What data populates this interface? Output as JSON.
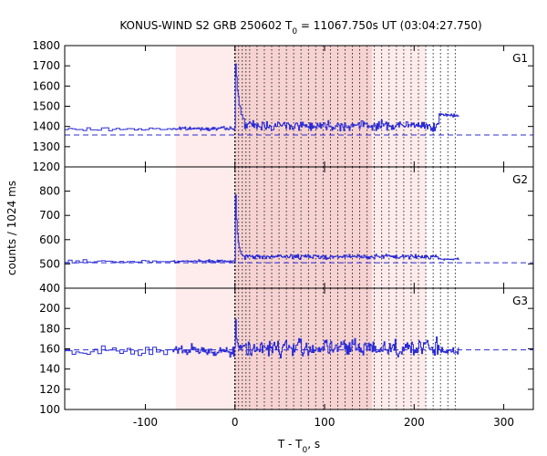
{
  "title": {
    "main": "KONUS-WIND S2 GRB 250602 T",
    "sub": "0",
    "rest": " = 11067.750s UT (03:04:27.750)"
  },
  "colors": {
    "series": "#2b2bd6",
    "shade_light": "#fdeceb",
    "shade_dark": "#f6d2d2",
    "baseline": "#2b2bd6",
    "axis": "#000000",
    "trigger_line": "#000000"
  },
  "chart_data": {
    "type": "line",
    "title": "KONUS-WIND S2 GRB 250602 T0 = 11067.750s UT (03:04:27.750)",
    "xlabel": "T - T0, s",
    "ylabel": "counts / 1024 ms",
    "xlim": [
      -190,
      333
    ],
    "xticks": [
      -100,
      0,
      100,
      200,
      300
    ],
    "xtick_labels": [
      "-100",
      "0",
      "100",
      "200",
      "300"
    ],
    "shaded_background_interval": [
      -66,
      0
    ],
    "shaded_burst_interval": [
      0,
      153
    ],
    "trigger_time": 0,
    "spectrum_interval_boundaries": [
      0,
      4.1,
      8.2,
      12.3,
      16.4,
      24.6,
      32.8,
      41.0,
      49.2,
      57.4,
      65.5,
      73.7,
      82.0,
      90.1,
      98.3,
      106.5,
      114.7,
      122.9,
      131.1,
      139.3,
      147.5,
      155.6,
      163.8,
      172.0,
      180.2,
      188.4,
      196.6,
      204.8,
      213.0,
      221.2,
      229.4,
      237.6,
      245.8
    ],
    "panels": [
      {
        "name": "G1",
        "ylim": [
          1200,
          1800
        ],
        "yticks": [
          1200,
          1300,
          1400,
          1500,
          1600,
          1700,
          1800
        ],
        "ytick_labels": [
          "1200",
          "1300",
          "1400",
          "1500",
          "1600",
          "1700",
          "1800"
        ],
        "background_level": 1358,
        "pre_mean": 1385,
        "pre_noise": 12,
        "pre_drift": 0.3,
        "burst_mean": 1405,
        "burst_noise": 35,
        "peak_value": 1740,
        "peak_decay": 4,
        "tail_start": 227,
        "tail_level": 1455
      },
      {
        "name": "G2",
        "ylim": [
          400,
          900
        ],
        "yticks": [
          400,
          500,
          600,
          700,
          800
        ],
        "ytick_labels": [
          "400",
          "500",
          "600",
          "700",
          "800"
        ],
        "background_level": 505,
        "pre_mean": 510,
        "pre_noise": 8,
        "pre_drift": 0.05,
        "burst_mean": 530,
        "burst_noise": 14,
        "peak_value": 850,
        "peak_decay": 2,
        "tail_start": 227,
        "tail_level": 520
      },
      {
        "name": "G3",
        "ylim": [
          100,
          220
        ],
        "yticks": [
          100,
          120,
          140,
          160,
          180,
          200
        ],
        "ytick_labels": [
          "100",
          "120",
          "140",
          "160",
          "180",
          "200"
        ],
        "background_level": 159,
        "pre_mean": 158,
        "pre_noise": 8,
        "pre_drift": 0,
        "burst_mean": 161,
        "burst_noise": 13,
        "peak_value": 205,
        "peak_decay": 1,
        "tail_start": 227,
        "tail_level": 158
      }
    ]
  }
}
